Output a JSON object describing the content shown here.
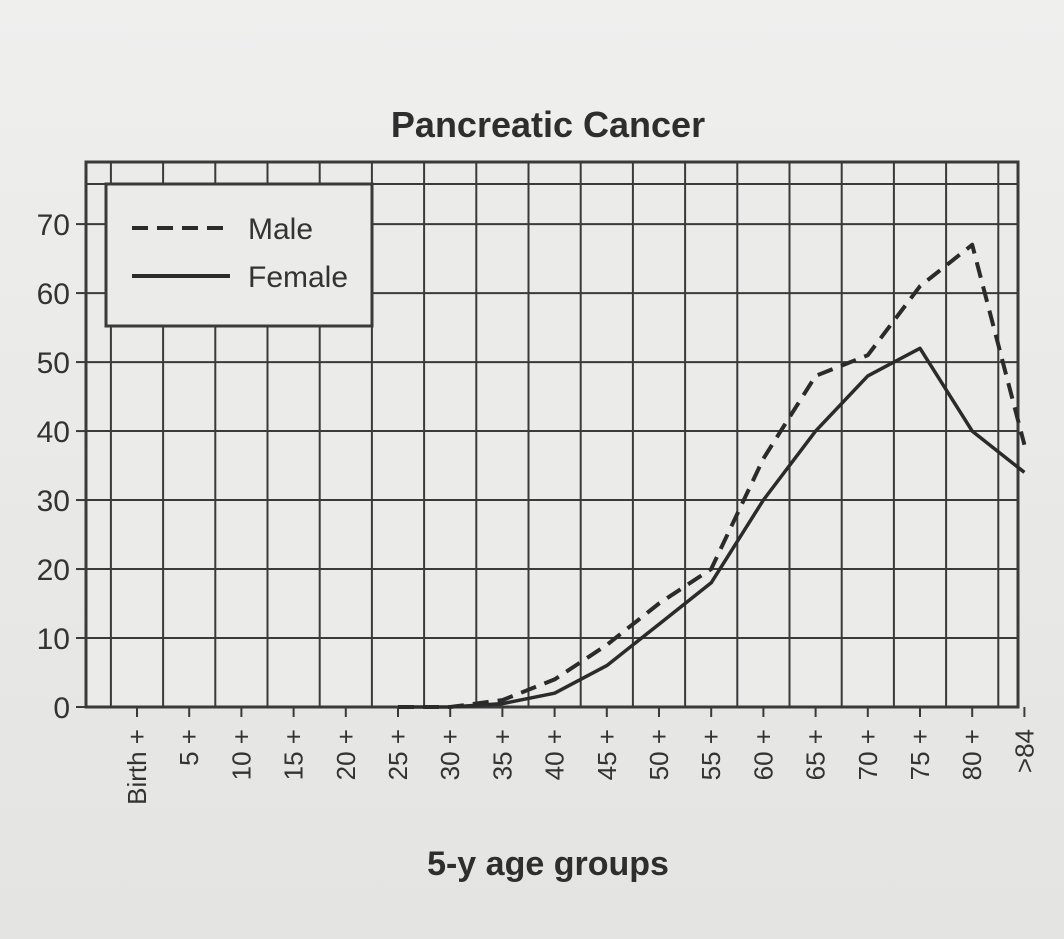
{
  "chart_data": {
    "type": "line",
    "title": "Pancreatic Cancer",
    "xlabel": "5-y age groups",
    "ylabel": "",
    "categories": [
      "Birth +",
      "5 +",
      "10 +",
      "15 +",
      "20 +",
      "25 +",
      "30 +",
      "35 +",
      "40 +",
      "45 +",
      "50 +",
      "55 +",
      "60 +",
      "65 +",
      "70 +",
      "75 +",
      "80 +",
      ">84"
    ],
    "y_ticks": [
      "0",
      "10",
      "20",
      "30",
      "40",
      "50",
      "60",
      "70"
    ],
    "ylim": [
      0,
      79
    ],
    "grid": true,
    "legend_position": "top-left",
    "series": [
      {
        "name": "Male",
        "style": "dashed",
        "values": [
          null,
          null,
          null,
          null,
          null,
          0,
          0,
          1,
          4,
          9,
          15,
          20,
          36,
          48,
          51,
          61,
          67,
          38
        ]
      },
      {
        "name": "Female",
        "style": "solid",
        "values": [
          null,
          null,
          null,
          null,
          null,
          0,
          0,
          0.5,
          2,
          6,
          12,
          18,
          30,
          40,
          48,
          52,
          40,
          34
        ]
      }
    ],
    "colors": {
      "line": "#2b2b2b",
      "grid": "#3a3a3a",
      "background": "#ebebea"
    }
  }
}
